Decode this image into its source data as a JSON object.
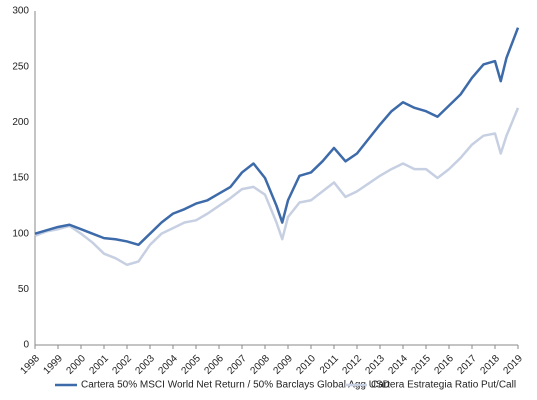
{
  "chart_data": {
    "type": "line",
    "x": [
      1998,
      1998.5,
      1999,
      1999.5,
      2000,
      2000.5,
      2001,
      2001.5,
      2002,
      2002.5,
      2003,
      2003.5,
      2004,
      2004.5,
      2005,
      2005.5,
      2006,
      2006.5,
      2007,
      2007.5,
      2008,
      2008.5,
      2008.75,
      2009,
      2009.5,
      2010,
      2010.5,
      2011,
      2011.5,
      2012,
      2012.5,
      2013,
      2013.5,
      2014,
      2014.5,
      2015,
      2015.5,
      2016,
      2016.5,
      2017,
      2017.5,
      2018,
      2018.25,
      2018.5,
      2019
    ],
    "series": [
      {
        "name": "Cartera 50% MSCI World Net Return / 50% Barclays Global Agg USD",
        "color": "#3d6aa9",
        "values": [
          100,
          103,
          106,
          108,
          104,
          100,
          96,
          95,
          93,
          90,
          100,
          110,
          118,
          122,
          127,
          130,
          136,
          142,
          155,
          163,
          150,
          125,
          110,
          130,
          152,
          155,
          165,
          177,
          165,
          172,
          185,
          198,
          210,
          218,
          213,
          210,
          205,
          215,
          225,
          240,
          252,
          255,
          237,
          258,
          285
        ]
      },
      {
        "name": "Cartera Estrategia Ratio Put/Call",
        "color": "#c7d0e2",
        "values": [
          98,
          102,
          104,
          107,
          100,
          92,
          82,
          78,
          72,
          75,
          90,
          100,
          105,
          110,
          112,
          118,
          125,
          132,
          140,
          142,
          135,
          110,
          95,
          115,
          128,
          130,
          138,
          146,
          133,
          138,
          145,
          152,
          158,
          163,
          158,
          158,
          150,
          158,
          168,
          180,
          188,
          190,
          172,
          188,
          213
        ]
      }
    ],
    "xlim": [
      1998,
      2019
    ],
    "xticks": [
      1998,
      1999,
      2000,
      2001,
      2002,
      2003,
      2004,
      2005,
      2006,
      2007,
      2008,
      2009,
      2010,
      2011,
      2012,
      2013,
      2014,
      2015,
      2016,
      2017,
      2018,
      2019
    ],
    "ylim": [
      0,
      300
    ],
    "yticks": [
      0,
      50,
      100,
      150,
      200,
      250,
      300
    ],
    "grid": false,
    "legend": "bottom"
  }
}
